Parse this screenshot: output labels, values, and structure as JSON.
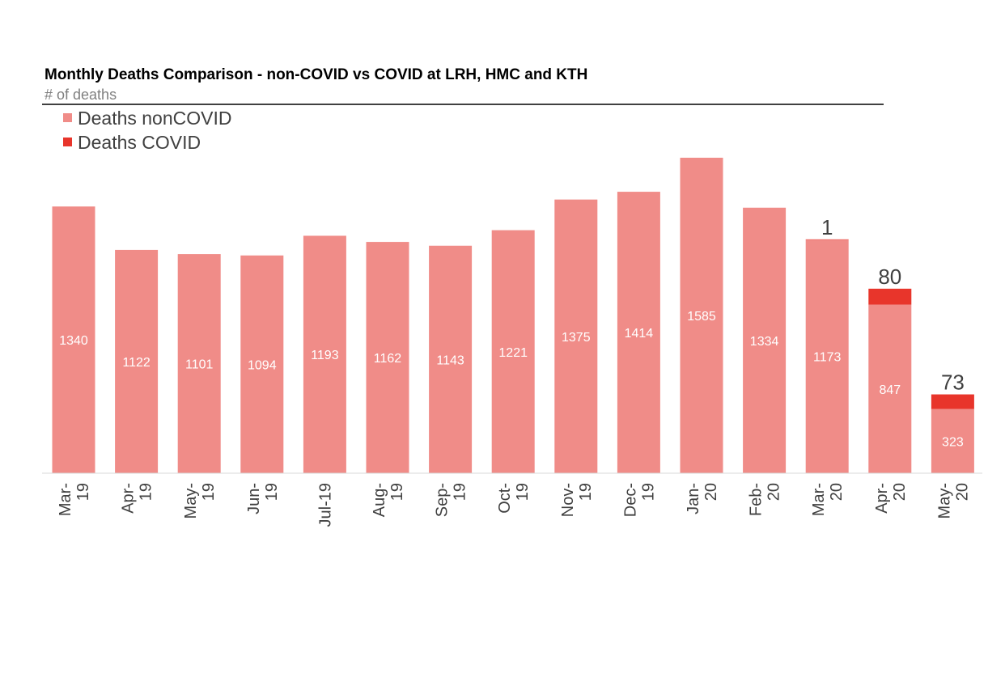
{
  "chart_data": {
    "type": "bar",
    "stacked": true,
    "title": "Monthly Deaths Comparison -  non-COVID vs COVID at LRH, HMC and KTH",
    "ylabel": "# of deaths",
    "ylim": [
      0,
      1650
    ],
    "grid": false,
    "legend_position": "top-left",
    "categories": [
      [
        "Mar-",
        "19"
      ],
      [
        "Apr-",
        "19"
      ],
      [
        "May-",
        "19"
      ],
      [
        "Jun-",
        "19"
      ],
      [
        "Jul-19"
      ],
      [
        "Aug-",
        "19"
      ],
      [
        "Sep-",
        "19"
      ],
      [
        "Oct-",
        "19"
      ],
      [
        "Nov-",
        "19"
      ],
      [
        "Dec-",
        "19"
      ],
      [
        "Jan-",
        "20"
      ],
      [
        "Feb-",
        "20"
      ],
      [
        "Mar-",
        "20"
      ],
      [
        "Apr-",
        "20"
      ],
      [
        "May-",
        "20"
      ]
    ],
    "series": [
      {
        "name": "Deaths nonCOVID",
        "color": "#f08c88",
        "values": [
          1340,
          1122,
          1101,
          1094,
          1193,
          1162,
          1143,
          1221,
          1375,
          1414,
          1585,
          1334,
          1173,
          847,
          323
        ]
      },
      {
        "name": "Deaths COVID",
        "color": "#e8352b",
        "values": [
          0,
          0,
          0,
          0,
          0,
          0,
          0,
          0,
          0,
          0,
          0,
          0,
          1,
          80,
          73
        ]
      }
    ]
  }
}
